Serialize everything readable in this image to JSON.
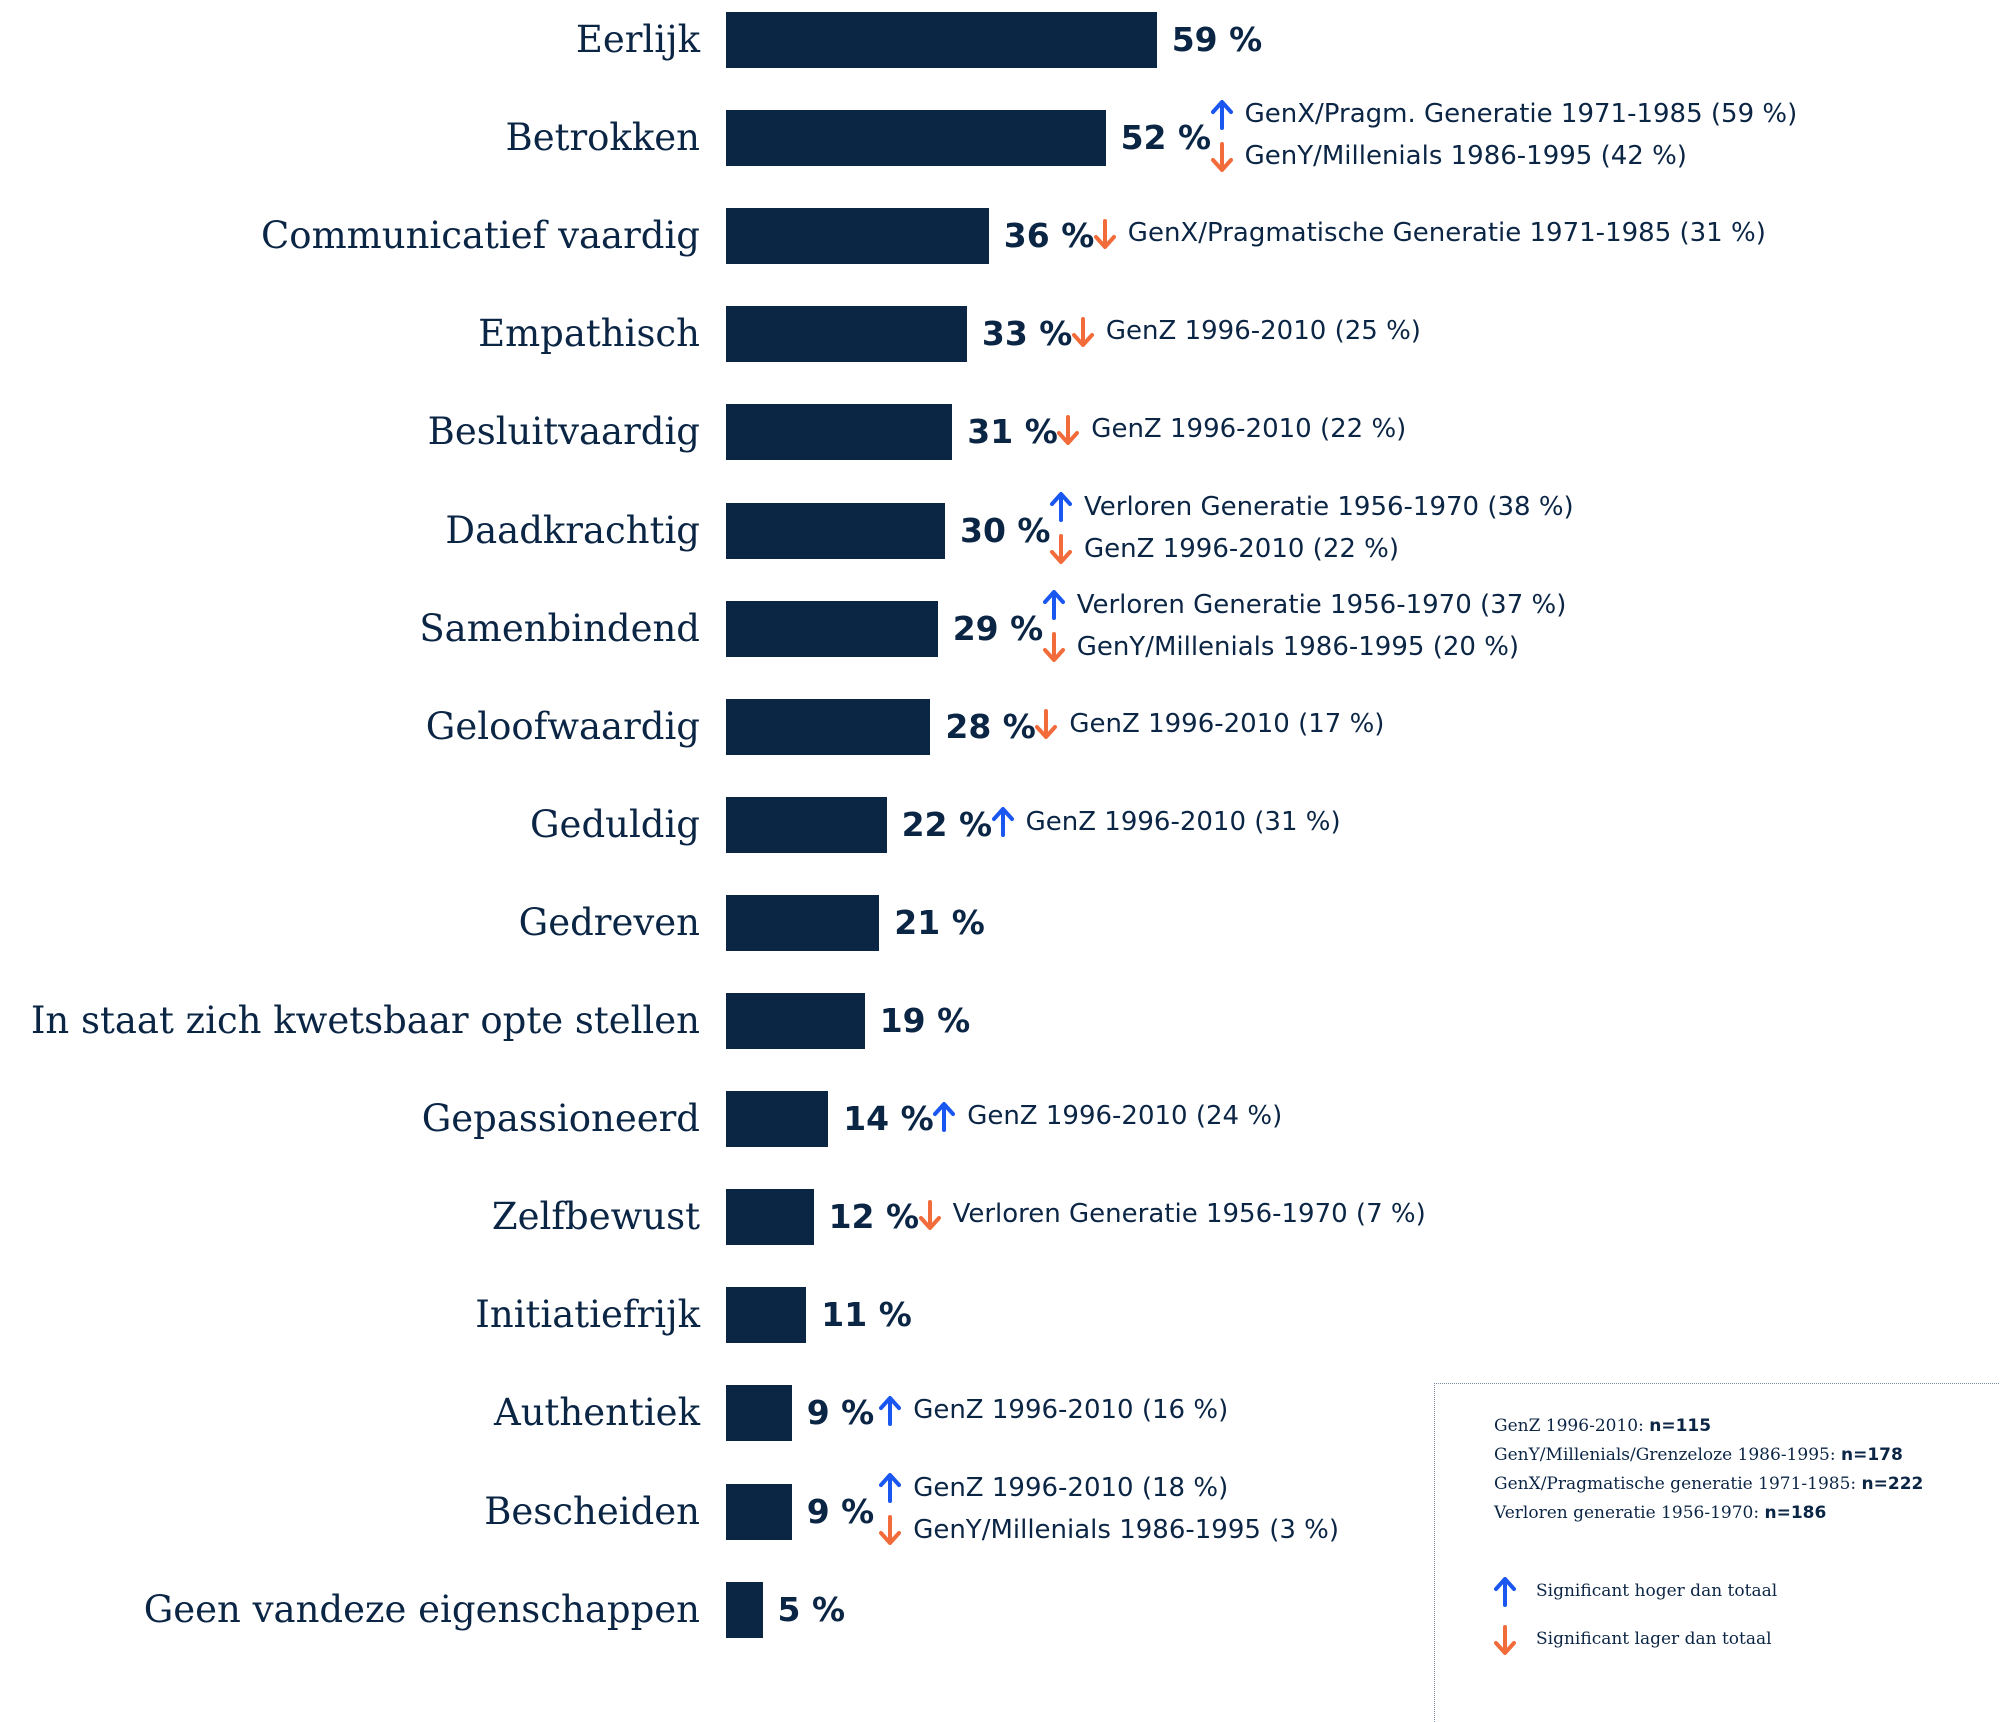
{
  "colors": {
    "bar": "#0b2545",
    "up_arrow": "#1a56f0",
    "down_arrow": "#f26b3a",
    "text": "#0b2545"
  },
  "chart_data": {
    "type": "bar",
    "orientation": "horizontal",
    "value_suffix": "%",
    "categories": [
      "Eerlijk",
      "Betrokken",
      "Communicatief vaardig",
      "Empathisch",
      "Besluitvaardig",
      "Daadkrachtig",
      "Samenbindend",
      "Geloofwaardig",
      "Geduldig",
      "Gedreven",
      "In staat zich kwetsbaar opte stellen",
      "Gepassioneerd",
      "Zelfbewust",
      "Initiatiefrijk",
      "Authentiek",
      "Bescheiden",
      "Geen vandeze eigenschappen"
    ],
    "values": [
      59,
      52,
      36,
      33,
      31,
      30,
      29,
      28,
      22,
      21,
      19,
      14,
      12,
      11,
      9,
      9,
      5
    ],
    "value_labels": [
      "59 %",
      "52 %",
      "36 %",
      "33 %",
      "31 %",
      "30 %",
      "29 %",
      "28 %",
      "22 %",
      "21 %",
      "19 %",
      "14 %",
      "12 %",
      "11 %",
      "9 %",
      "9 %",
      "5 %"
    ],
    "xlim": [
      0,
      100
    ],
    "annotations": [
      [],
      [
        {
          "dir": "up",
          "text": "GenX/Pragm. Generatie 1971-1985 (59 %)"
        },
        {
          "dir": "down",
          "text": "GenY/Millenials 1986-1995 (42 %)"
        }
      ],
      [
        {
          "dir": "down",
          "text": "GenX/Pragmatische Generatie 1971-1985 (31 %)"
        }
      ],
      [
        {
          "dir": "down",
          "text": "GenZ 1996-2010 (25 %)"
        }
      ],
      [
        {
          "dir": "down",
          "text": "GenZ 1996-2010 (22 %)"
        }
      ],
      [
        {
          "dir": "up",
          "text": "Verloren Generatie 1956-1970 (38 %)"
        },
        {
          "dir": "down",
          "text": "GenZ 1996-2010 (22 %)"
        }
      ],
      [
        {
          "dir": "up",
          "text": "Verloren Generatie 1956-1970 (37 %)"
        },
        {
          "dir": "down",
          "text": "GenY/Millenials 1986-1995 (20 %)"
        }
      ],
      [
        {
          "dir": "down",
          "text": "GenZ 1996-2010 (17 %)"
        }
      ],
      [
        {
          "dir": "up",
          "text": "GenZ 1996-2010 (31 %)"
        }
      ],
      [],
      [],
      [
        {
          "dir": "up",
          "text": "GenZ 1996-2010 (24 %)"
        }
      ],
      [
        {
          "dir": "down",
          "text": "Verloren Generatie 1956-1970 (7 %)"
        }
      ],
      [],
      [
        {
          "dir": "up",
          "text": "GenZ 1996-2010 (16 %)"
        }
      ],
      [
        {
          "dir": "up",
          "text": "GenZ 1996-2010 (18 %)"
        },
        {
          "dir": "down",
          "text": "GenY/Millenials 1986-1995 (3 %)"
        }
      ],
      []
    ],
    "legend": {
      "samples": [
        {
          "label": "GenZ 1996-2010:",
          "n": "n=115"
        },
        {
          "label": "GenY/Millenials/Grenzeloze 1986-1995:",
          "n": "n=178"
        },
        {
          "label": "GenX/Pragmatische generatie 1971-1985:",
          "n": "n=222"
        },
        {
          "label": "Verloren generatie 1956-1970:",
          "n": "n=186"
        }
      ],
      "keys": [
        {
          "dir": "up",
          "text": "Significant hoger dan totaal"
        },
        {
          "dir": "down",
          "text": "Significant lager dan totaal"
        }
      ],
      "placement": "bottom-right"
    }
  }
}
